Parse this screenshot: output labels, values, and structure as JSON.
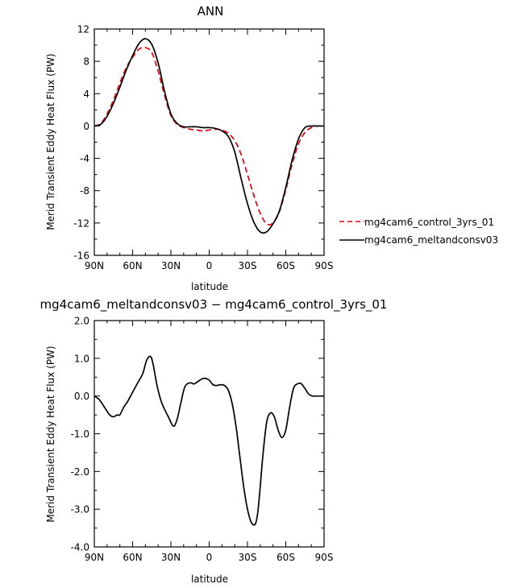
{
  "chart_data": [
    {
      "type": "line",
      "title": "ANN",
      "xlabel": "latitude",
      "ylabel": "Merid Transient Eddy Heat Flux (PW)",
      "xlim": [
        90,
        -90
      ],
      "ylim": [
        -16,
        12
      ],
      "xticks": [
        90,
        60,
        30,
        0,
        -30,
        -60,
        -90
      ],
      "xtick_labels": [
        "90N",
        "60N",
        "30N",
        "0",
        "30S",
        "60S",
        "90S"
      ],
      "yticks": [
        -16,
        -12,
        -8,
        -4,
        0,
        4,
        8,
        12
      ],
      "ytick_labels": [
        "-16",
        "-12",
        "-8",
        "-4",
        "0",
        "4",
        "8",
        "12"
      ],
      "legend_position": "right, outside plot, lower",
      "grid": false,
      "series": [
        {
          "name": "mg4cam6_control_3yrs_01",
          "color": "#e8000b",
          "dash": "dashed",
          "x": [
            90,
            85,
            80,
            75,
            70,
            65,
            60,
            55,
            50,
            45,
            40,
            35,
            30,
            25,
            20,
            15,
            10,
            5,
            0,
            -5,
            -10,
            -15,
            -20,
            -25,
            -30,
            -35,
            -40,
            -45,
            -50,
            -55,
            -60,
            -65,
            -70,
            -75,
            -80,
            -85,
            -90
          ],
          "y": [
            0,
            0.3,
            1.5,
            3.2,
            5.3,
            7.2,
            8.5,
            9.5,
            9.7,
            9.1,
            6.8,
            3.8,
            1.3,
            0.2,
            -0.2,
            -0.4,
            -0.5,
            -0.6,
            -0.5,
            -0.4,
            -0.5,
            -0.9,
            -1.8,
            -3.5,
            -6.0,
            -8.6,
            -10.8,
            -12.1,
            -12.0,
            -10.6,
            -7.9,
            -4.7,
            -2.2,
            -0.8,
            -0.2,
            0,
            0
          ]
        },
        {
          "name": "mg4cam6_meltandconsv03",
          "color": "#000000",
          "dash": "solid",
          "x": [
            90,
            85,
            80,
            75,
            70,
            65,
            60,
            55,
            50,
            45,
            40,
            35,
            30,
            25,
            20,
            15,
            10,
            5,
            0,
            -5,
            -10,
            -15,
            -20,
            -25,
            -30,
            -35,
            -40,
            -45,
            -50,
            -55,
            -60,
            -65,
            -70,
            -75,
            -80,
            -85,
            -90
          ],
          "y": [
            0,
            0.2,
            1.2,
            2.8,
            4.8,
            6.9,
            8.7,
            10.2,
            10.8,
            10.1,
            7.8,
            4.3,
            1.5,
            0.3,
            -0.1,
            -0.1,
            -0.1,
            -0.2,
            -0.2,
            -0.3,
            -0.6,
            -1.3,
            -3.2,
            -6.5,
            -9.6,
            -11.9,
            -13.1,
            -13.1,
            -12.1,
            -10.5,
            -7.6,
            -4.2,
            -1.6,
            -0.2,
            0,
            0,
            0
          ]
        }
      ]
    },
    {
      "type": "line",
      "title": "mg4cam6_meltandconsv03 − mg4cam6_control_3yrs_01",
      "xlabel": "latitude",
      "ylabel": "Merid Transient Eddy Heat Flux (PW)",
      "xlim": [
        90,
        -90
      ],
      "ylim": [
        -4.0,
        2.0
      ],
      "xticks": [
        90,
        60,
        30,
        0,
        -30,
        -60,
        -90
      ],
      "xtick_labels": [
        "90N",
        "60N",
        "30N",
        "0",
        "30S",
        "60S",
        "90S"
      ],
      "yticks": [
        -4.0,
        -3.0,
        -2.0,
        -1.0,
        0.0,
        1.0,
        2.0
      ],
      "ytick_labels": [
        "-4.0",
        "-3.0",
        "-2.0",
        "-1.0",
        "0.0",
        "1.0",
        "2.0"
      ],
      "grid": false,
      "series": [
        {
          "color": "#000000",
          "dash": "solid",
          "x": [
            90,
            86,
            82,
            78,
            75,
            72,
            70,
            67,
            64,
            60,
            56,
            52,
            49,
            46,
            44,
            41,
            38,
            35,
            32,
            28,
            25,
            22,
            19,
            15,
            12,
            9,
            6,
            3,
            0,
            -3,
            -6,
            -9,
            -12,
            -15,
            -18,
            -21,
            -24,
            -27,
            -30,
            -33,
            -36,
            -38,
            -40,
            -42,
            -45,
            -48,
            -51,
            -54,
            -57,
            -60,
            -63,
            -66,
            -69,
            -72,
            -75,
            -78,
            -81,
            -84,
            -87,
            -90
          ],
          "y": [
            0,
            -0.1,
            -0.3,
            -0.5,
            -0.55,
            -0.5,
            -0.5,
            -0.3,
            -0.15,
            0.1,
            0.35,
            0.6,
            0.95,
            1.05,
            0.85,
            0.3,
            -0.1,
            -0.35,
            -0.55,
            -0.8,
            -0.6,
            -0.15,
            0.25,
            0.35,
            0.32,
            0.38,
            0.45,
            0.47,
            0.42,
            0.3,
            0.28,
            0.3,
            0.28,
            0.15,
            -0.2,
            -0.8,
            -1.6,
            -2.4,
            -3.0,
            -3.35,
            -3.4,
            -3.1,
            -2.4,
            -1.6,
            -0.7,
            -0.45,
            -0.55,
            -0.9,
            -1.1,
            -0.9,
            -0.3,
            0.2,
            0.32,
            0.33,
            0.2,
            0.05,
            0,
            0,
            0,
            0
          ]
        }
      ]
    }
  ]
}
